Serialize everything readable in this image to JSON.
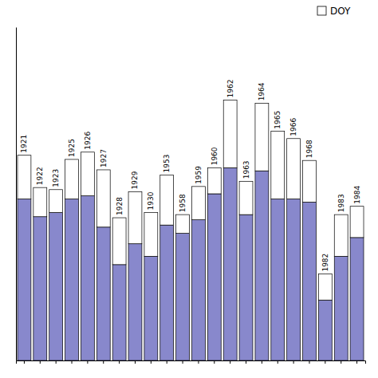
{
  "chart_data": {
    "type": "bar",
    "stacked": true,
    "categories": [
      "1921",
      "1922",
      "1923",
      "1925",
      "1926",
      "1927",
      "1928",
      "1929",
      "1930",
      "1953",
      "1958",
      "1959",
      "1960",
      "1962",
      "1963",
      "1964",
      "1965",
      "1966",
      "1968",
      "1982",
      "1983",
      "1984"
    ],
    "series": [
      {
        "color": "#8888CC",
        "values": [
          1.55,
          1.38,
          1.42,
          1.55,
          1.58,
          1.28,
          0.92,
          1.12,
          1.0,
          1.3,
          1.22,
          1.35,
          1.6,
          1.85,
          1.4,
          1.82,
          1.55,
          1.55,
          1.52,
          0.58,
          1.0,
          1.18
        ]
      },
      {
        "name": "DOY",
        "color": "#FFFFFF",
        "values": [
          0.42,
          0.28,
          0.22,
          0.38,
          0.42,
          0.55,
          0.45,
          0.5,
          0.42,
          0.48,
          0.18,
          0.32,
          0.25,
          0.65,
          0.32,
          0.65,
          0.65,
          0.58,
          0.4,
          0.25,
          0.4,
          0.3
        ]
      }
    ],
    "ylim": [
      0,
      3.2
    ],
    "legend": "upper right",
    "tick_labels": false
  }
}
